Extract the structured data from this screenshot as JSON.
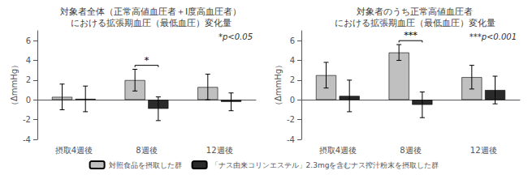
{
  "chart_data": [
    {
      "type": "bar",
      "title": "対象者全体（正常高値血圧者＋Ⅰ度高血圧者）\nにおける拡張期血圧（最低血圧）変化量",
      "ylabel": "（ΔmmHg）",
      "categories": [
        "摂取4週後",
        "8週後",
        "12週後"
      ],
      "series": [
        {
          "name": "対照食品を摂取した群",
          "color": "#c0c0c0",
          "values": [
            0.3,
            2.0,
            1.3
          ],
          "errors": [
            1.3,
            1.1,
            1.3
          ]
        },
        {
          "name": "「ナス由来コリンエステル」2.3mgを含むナス搾汁粉末を摂取した群",
          "color": "#2a2a2a",
          "values": [
            0.1,
            -0.9,
            -0.2
          ],
          "errors": [
            1.3,
            1.2,
            0.9
          ]
        }
      ],
      "ylim": [
        -4,
        7
      ],
      "yticks": [
        -4,
        -2,
        0,
        2,
        4,
        6
      ],
      "grid": false,
      "legend": "bottom",
      "annotations": [
        {
          "text": "*p<0.05"
        },
        {
          "text": "*",
          "category": "8週後"
        }
      ]
    },
    {
      "type": "bar",
      "title": "対象者のうち正常高値血圧者\nにおける拡張期血圧（最低血圧）変化量",
      "ylabel": "（ΔmmHg）",
      "categories": [
        "摂取4週後",
        "8週後",
        "12週後"
      ],
      "series": [
        {
          "name": "対照食品を摂取した群",
          "color": "#c0c0c0",
          "values": [
            2.5,
            4.8,
            2.3
          ],
          "errors": [
            1.3,
            0.8,
            1.2
          ]
        },
        {
          "name": "「ナス由来コリンエステル」2.3mgを含むナス搾汁粉末を摂取した群",
          "color": "#2a2a2a",
          "values": [
            0.4,
            -0.5,
            1.0
          ],
          "errors": [
            1.6,
            1.3,
            1.4
          ]
        }
      ],
      "ylim": [
        -4,
        7
      ],
      "yticks": [
        -4,
        -2,
        0,
        2,
        4,
        6
      ],
      "grid": false,
      "legend": "bottom",
      "annotations": [
        {
          "text": "***p<0.001"
        },
        {
          "text": "***",
          "category": "8週後"
        }
      ]
    }
  ]
}
